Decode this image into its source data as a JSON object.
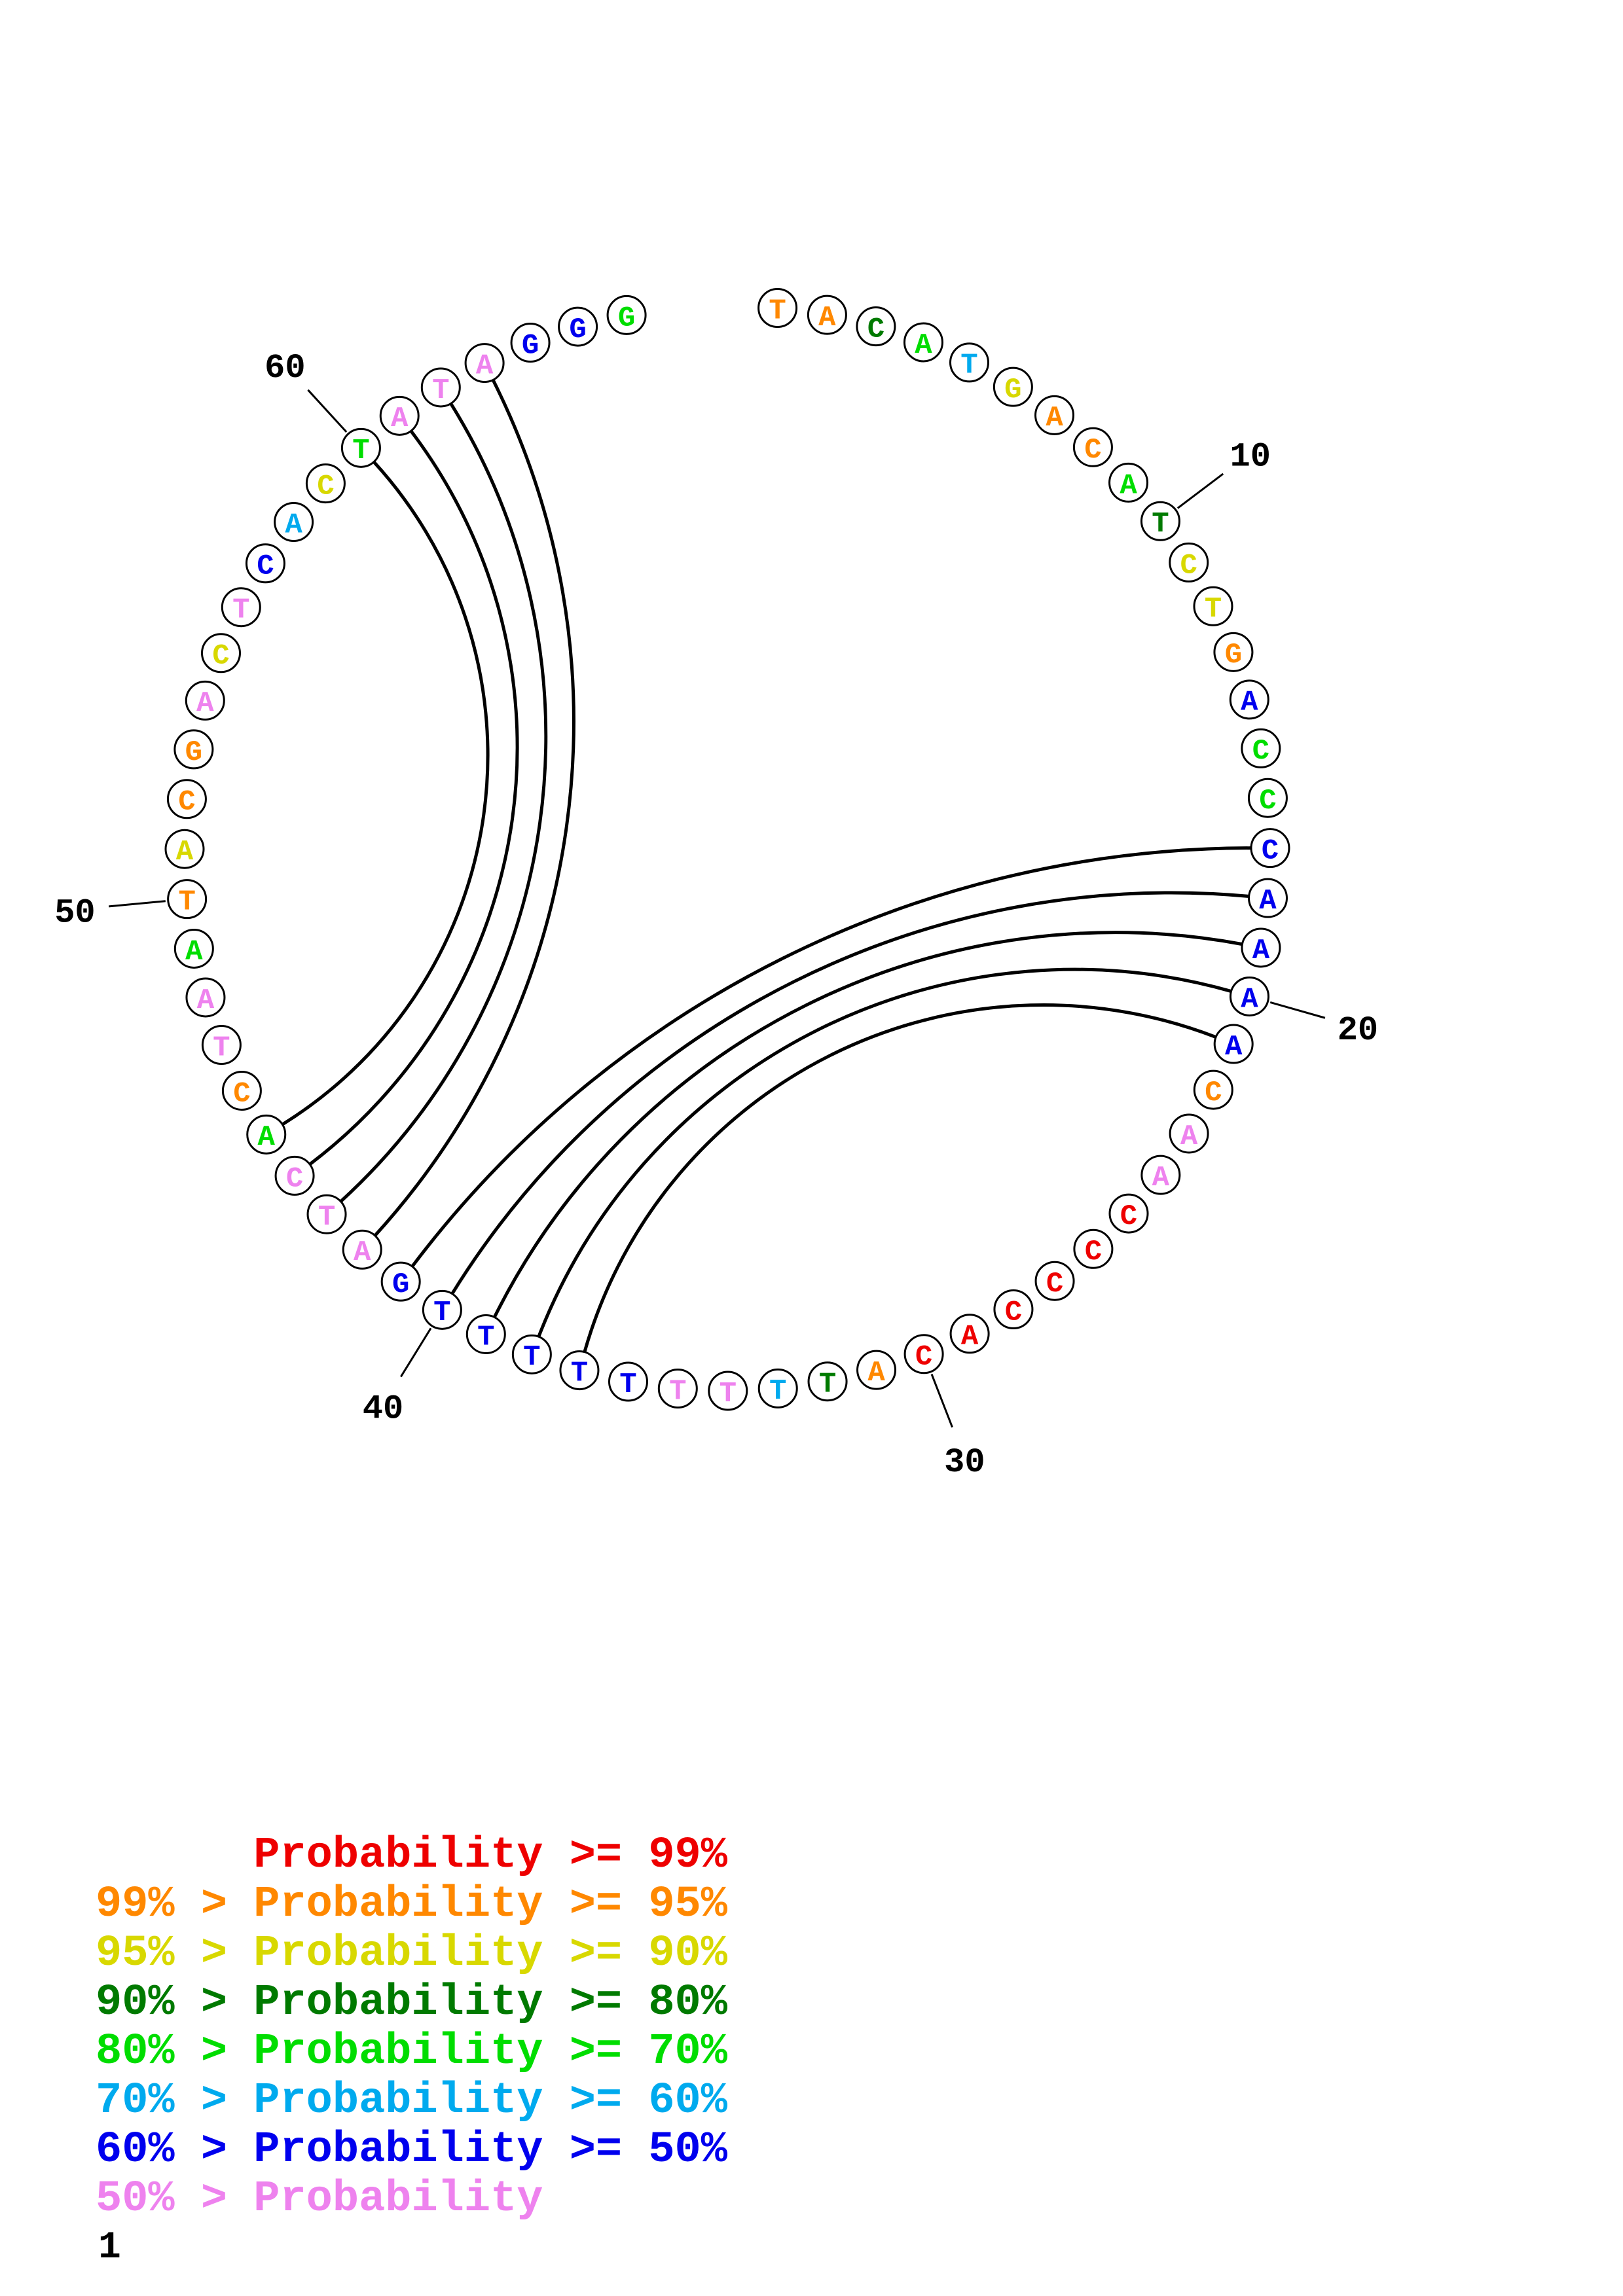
{
  "page": {
    "number_label": "1"
  },
  "chart_data": {
    "type": "rna-secondary-structure-circle-plot",
    "sequence": "TACATGACATCTGACCCAAAACAACCCCACATTTTTTTTTGATCACTAATACGACTCACTATAGGG",
    "sequence_length": 66,
    "position_labels": [
      10,
      20,
      30,
      40,
      50,
      60
    ],
    "base_pairs": [
      [
        17,
        41
      ],
      [
        18,
        40
      ],
      [
        19,
        39
      ],
      [
        20,
        38
      ],
      [
        21,
        37
      ],
      [
        42,
        63
      ],
      [
        43,
        62
      ],
      [
        44,
        61
      ],
      [
        45,
        60
      ]
    ],
    "arc_color": "#000000",
    "palette": {
      "p99": "#ee0000",
      "p95": "#ff8800",
      "p90": "#d8d800",
      "p80": "#007a00",
      "p70": "#00dd00",
      "p60": "#00aaee",
      "p50": "#0000ee",
      "plt50": "#ee82ee"
    },
    "probability_classes": [
      "p95",
      "p95",
      "p80",
      "p70",
      "p60",
      "p90",
      "p95",
      "p95",
      "p70",
      "p80",
      "p90",
      "p90",
      "p95",
      "p50",
      "p70",
      "p70",
      "p50",
      "p50",
      "p50",
      "p50",
      "p50",
      "p95",
      "plt50",
      "plt50",
      "p99",
      "p99",
      "p99",
      "p99",
      "p99",
      "p99",
      "p95",
      "p80",
      "p60",
      "plt50",
      "plt50",
      "p50",
      "p50",
      "p50",
      "p50",
      "p50",
      "p50",
      "plt50",
      "plt50",
      "plt50",
      "p70",
      "p95",
      "plt50",
      "plt50",
      "p70",
      "p95",
      "p90",
      "p95",
      "p95",
      "plt50",
      "p90",
      "plt50",
      "p50",
      "p60",
      "p90",
      "p70",
      "plt50",
      "plt50",
      "plt50",
      "p50",
      "p50",
      "p70"
    ],
    "legend": {
      "lines": [
        {
          "text": "      Probability >= 99%",
          "color_key": "p99"
        },
        {
          "text": "99% > Probability >= 95%",
          "color_key": "p95"
        },
        {
          "text": "95% > Probability >= 90%",
          "color_key": "p90"
        },
        {
          "text": "90% > Probability >= 80%",
          "color_key": "p80"
        },
        {
          "text": "80% > Probability >= 70%",
          "color_key": "p70"
        },
        {
          "text": "70% > Probability >= 60%",
          "color_key": "p60"
        },
        {
          "text": "60% > Probability >= 50%",
          "color_key": "p50"
        },
        {
          "text": "50% > Probability",
          "color_key": "plt50"
        }
      ]
    }
  }
}
